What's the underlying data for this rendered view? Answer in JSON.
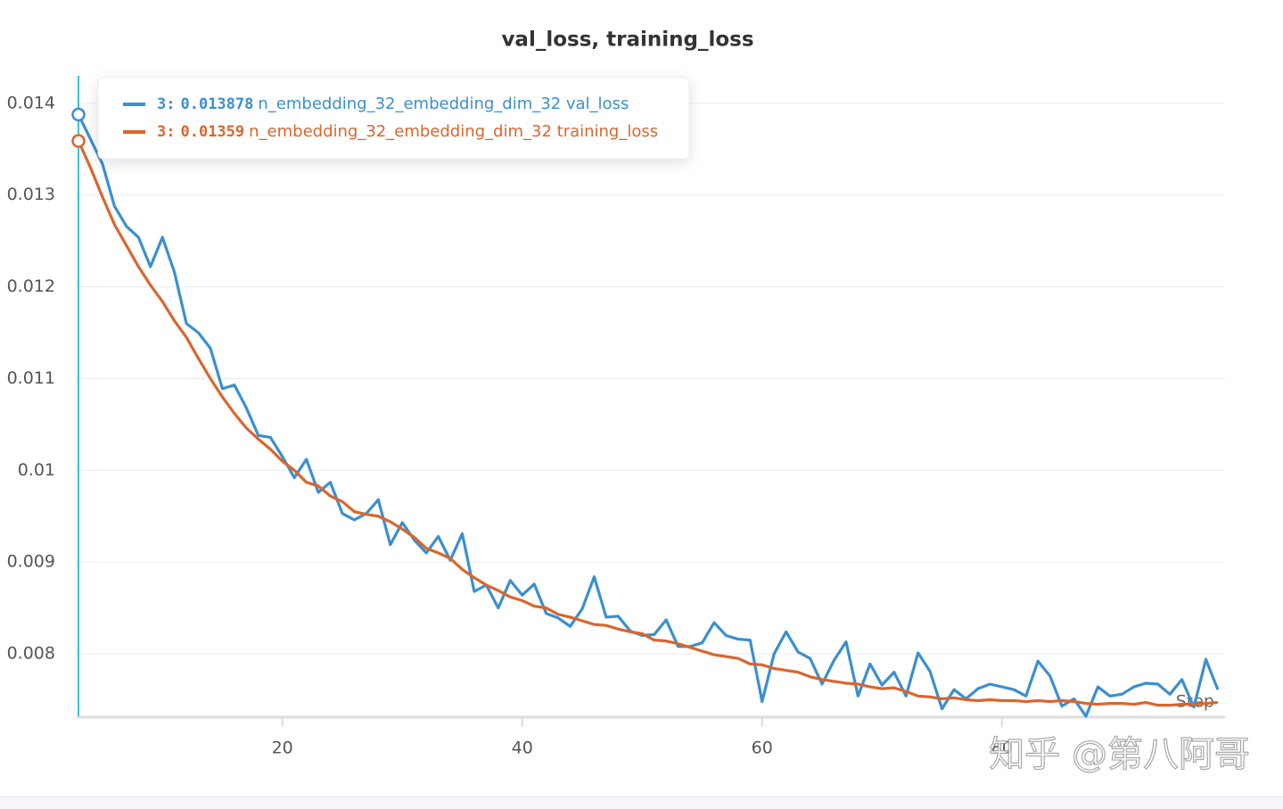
{
  "chart_data": {
    "type": "line",
    "title": "val_loss, training_loss",
    "x_label": "Step",
    "x": [
      3,
      4,
      5,
      6,
      7,
      8,
      9,
      10,
      11,
      12,
      13,
      14,
      15,
      16,
      17,
      18,
      19,
      20,
      21,
      22,
      23,
      24,
      25,
      26,
      27,
      28,
      29,
      30,
      31,
      32,
      33,
      34,
      35,
      36,
      37,
      38,
      39,
      40,
      41,
      42,
      43,
      44,
      45,
      46,
      47,
      48,
      49,
      50,
      51,
      52,
      53,
      54,
      55,
      56,
      57,
      58,
      59,
      60,
      61,
      62,
      63,
      64,
      65,
      66,
      67,
      68,
      69,
      70,
      71,
      72,
      73,
      74,
      75,
      76,
      77,
      78,
      79,
      80,
      81,
      82,
      83,
      84,
      85,
      86,
      87,
      88,
      89,
      90,
      91,
      92,
      93,
      94,
      95,
      96,
      97,
      98
    ],
    "series": [
      {
        "name": "n_embedding_32_embedding_dim_32 val_loss",
        "color": "#3b8fd0",
        "values": [
          0.013878,
          0.01361,
          0.01334,
          0.01288,
          0.01266,
          0.01254,
          0.01222,
          0.01254,
          0.01216,
          0.0116,
          0.0115,
          0.01133,
          0.01089,
          0.01093,
          0.01068,
          0.01038,
          0.01036,
          0.01015,
          0.00992,
          0.01012,
          0.00976,
          0.00987,
          0.00953,
          0.00946,
          0.00953,
          0.00968,
          0.00919,
          0.00943,
          0.00924,
          0.0091,
          0.00928,
          0.00902,
          0.00931,
          0.00868,
          0.00875,
          0.0085,
          0.0088,
          0.00864,
          0.00876,
          0.00844,
          0.00839,
          0.0083,
          0.00849,
          0.00884,
          0.0084,
          0.00841,
          0.00825,
          0.0082,
          0.00821,
          0.00837,
          0.00808,
          0.00808,
          0.00812,
          0.00834,
          0.0082,
          0.00816,
          0.00815,
          0.00748,
          0.008,
          0.00824,
          0.00802,
          0.00795,
          0.00767,
          0.00793,
          0.00813,
          0.00754,
          0.00789,
          0.00766,
          0.0078,
          0.00754,
          0.00801,
          0.00781,
          0.0074,
          0.00761,
          0.00751,
          0.00762,
          0.00767,
          0.00764,
          0.00761,
          0.00754,
          0.00792,
          0.00776,
          0.00743,
          0.00751,
          0.00732,
          0.00764,
          0.00754,
          0.00756,
          0.00764,
          0.00768,
          0.00767,
          0.00756,
          0.00772,
          0.00742,
          0.00794,
          0.00761
        ]
      },
      {
        "name": "n_embedding_32_embedding_dim_32 training_loss",
        "color": "#d9662e",
        "values": [
          0.01359,
          0.0133,
          0.01298,
          0.01268,
          0.01245,
          0.01222,
          0.01202,
          0.01184,
          0.01163,
          0.01145,
          0.01122,
          0.011,
          0.0108,
          0.01062,
          0.01046,
          0.01034,
          0.01023,
          0.0101,
          0.01,
          0.00987,
          0.00983,
          0.00972,
          0.00966,
          0.00955,
          0.00952,
          0.0095,
          0.00944,
          0.00936,
          0.00927,
          0.00915,
          0.0091,
          0.00904,
          0.00892,
          0.00883,
          0.00875,
          0.00869,
          0.00862,
          0.00858,
          0.00852,
          0.0085,
          0.00843,
          0.0084,
          0.00836,
          0.00832,
          0.00831,
          0.00827,
          0.00824,
          0.00822,
          0.00815,
          0.00814,
          0.00811,
          0.00807,
          0.00803,
          0.00799,
          0.00797,
          0.00795,
          0.00789,
          0.00788,
          0.00784,
          0.00782,
          0.0078,
          0.00775,
          0.00772,
          0.0077,
          0.00768,
          0.00767,
          0.00764,
          0.00762,
          0.00763,
          0.00759,
          0.00754,
          0.00753,
          0.00751,
          0.00752,
          0.0075,
          0.00749,
          0.0075,
          0.00749,
          0.00749,
          0.00748,
          0.00749,
          0.00748,
          0.00749,
          0.00748,
          0.00746,
          0.00745,
          0.00746,
          0.00746,
          0.00745,
          0.00747,
          0.00744,
          0.00744,
          0.00745,
          0.00745,
          0.00746,
          0.00747
        ]
      }
    ],
    "xlim": [
      2.85,
      98.6
    ],
    "ylim": [
      0.00732,
      0.0143
    ],
    "xticks": [
      20,
      40,
      60,
      80
    ],
    "yticks": [
      0.008,
      0.009,
      0.01,
      0.011,
      0.012,
      0.013,
      0.014
    ],
    "grid": true,
    "cursor": {
      "x": 3,
      "label": "3:",
      "color": "#3ac3d3"
    },
    "watermark": "知乎 @第八阿哥"
  }
}
